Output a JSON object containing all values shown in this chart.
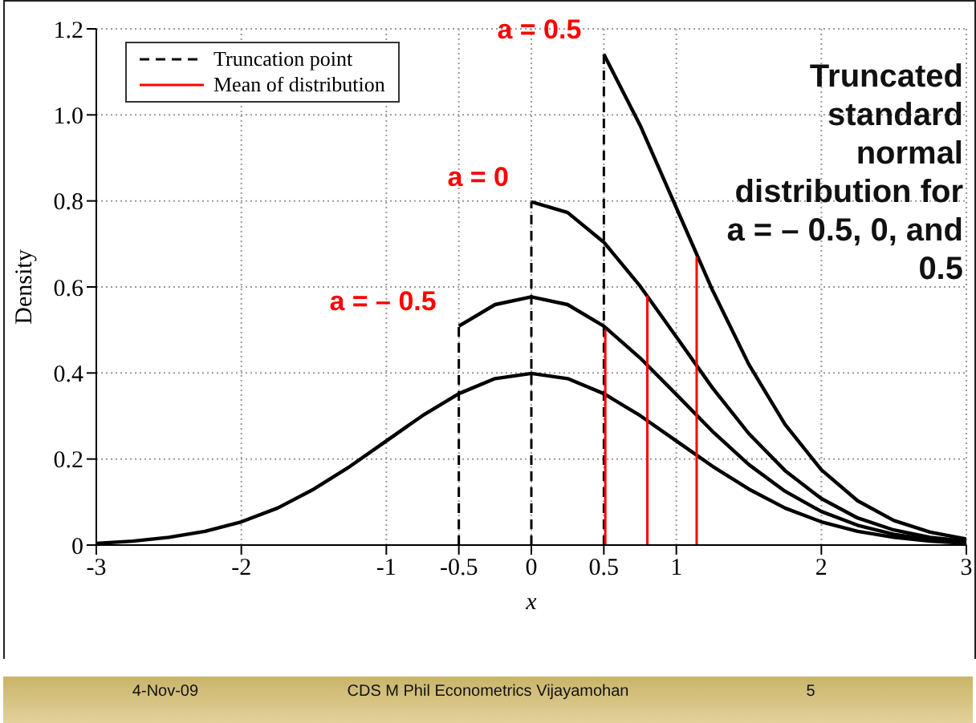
{
  "chart_data": {
    "type": "line",
    "title": "Truncated standard normal distribution for a = – 0.5, 0, and 0.5",
    "xlabel": "x",
    "ylabel": "Density",
    "xlim": [
      -3,
      3
    ],
    "xticks": [
      -3,
      -2,
      -1,
      -0.5,
      0,
      0.5,
      1,
      2,
      3
    ],
    "ylim": [
      0,
      1.2
    ],
    "yticks": [
      0,
      {
        "value": 0.2,
        "label": "0.2"
      },
      {
        "value": 0.4,
        "label": "0.4"
      },
      {
        "value": 0.6,
        "label": "0.6"
      },
      {
        "value": 0.8,
        "label": "0.8"
      },
      {
        "value": 1,
        "label": "1.0"
      },
      {
        "value": 1.2,
        "label": "1.2"
      }
    ],
    "grid": true,
    "legend": "top left",
    "marker": "none",
    "series": [
      {
        "color": "#000000",
        "line_style": "solid",
        "x": [
          -3,
          -2.75,
          -2.5,
          -2.25,
          -2,
          -1.75,
          -1.5,
          -1.25,
          -1,
          -0.75,
          -0.5,
          -0.25,
          0,
          0.25,
          0.5,
          0.75,
          1,
          1.25,
          1.5,
          1.75,
          2,
          2.25,
          2.5,
          2.75,
          3
        ],
        "values": [
          0.004,
          0.009,
          0.018,
          0.032,
          0.054,
          0.086,
          0.13,
          0.183,
          0.242,
          0.301,
          0.352,
          0.387,
          0.399,
          0.387,
          0.352,
          0.301,
          0.242,
          0.183,
          0.13,
          0.086,
          0.054,
          0.032,
          0.018,
          0.009,
          0.004
        ]
      },
      {
        "color": "#000000",
        "line_style": "solid",
        "x": [
          -0.5,
          -0.25,
          0,
          0.25,
          0.5,
          0.75,
          1,
          1.25,
          1.5,
          1.75,
          2,
          2.25,
          2.5,
          2.75,
          3
        ],
        "values": [
          0.509,
          0.559,
          0.577,
          0.559,
          0.509,
          0.435,
          0.35,
          0.264,
          0.187,
          0.125,
          0.078,
          0.046,
          0.025,
          0.013,
          0.006
        ]
      },
      {
        "color": "#000000",
        "line_style": "solid",
        "x": [
          0,
          0.25,
          0.5,
          0.75,
          1,
          1.25,
          1.5,
          1.75,
          2,
          2.25,
          2.5,
          2.75,
          3
        ],
        "values": [
          0.798,
          0.773,
          0.704,
          0.602,
          0.484,
          0.365,
          0.259,
          0.173,
          0.108,
          0.063,
          0.035,
          0.018,
          0.009
        ]
      },
      {
        "color": "#000000",
        "line_style": "solid",
        "x": [
          0.5,
          0.75,
          1,
          1.25,
          1.5,
          1.75,
          2,
          2.25,
          2.5,
          2.75,
          3
        ],
        "values": [
          1.141,
          0.976,
          0.784,
          0.592,
          0.42,
          0.28,
          0.175,
          0.103,
          0.057,
          0.03,
          0.014
        ]
      },
      {
        "name": "Truncation point",
        "color": "#000000",
        "line_style": "dashed",
        "x": [
          -0.5,
          -0.5,
          -0.25,
          0,
          0,
          0.25,
          0.5,
          0.5
        ],
        "values": [
          0,
          0.509,
          null,
          0,
          0.798,
          null,
          0,
          1.141
        ]
      },
      {
        "name": "Mean of distribution",
        "color": "#ff0000",
        "line_style": "solid",
        "x": [
          0.51,
          0.51,
          0.65,
          0.8,
          0.8,
          0.97,
          1.14,
          1.14
        ],
        "values": [
          0,
          0.5,
          null,
          0,
          0.58,
          null,
          0,
          0.67
        ]
      }
    ],
    "annotations": [
      {
        "text": "a = – 0.5",
        "x": -0.5,
        "y": 0.509
      },
      {
        "text": "a =  0",
        "x": 0,
        "y": 0.798
      },
      {
        "text": "a = 0.5",
        "x": 0.5,
        "y": 1.141
      },
      "4-Nov-09",
      "CDS M Phil Econometrics Vijayamohan",
      "5"
    ]
  }
}
